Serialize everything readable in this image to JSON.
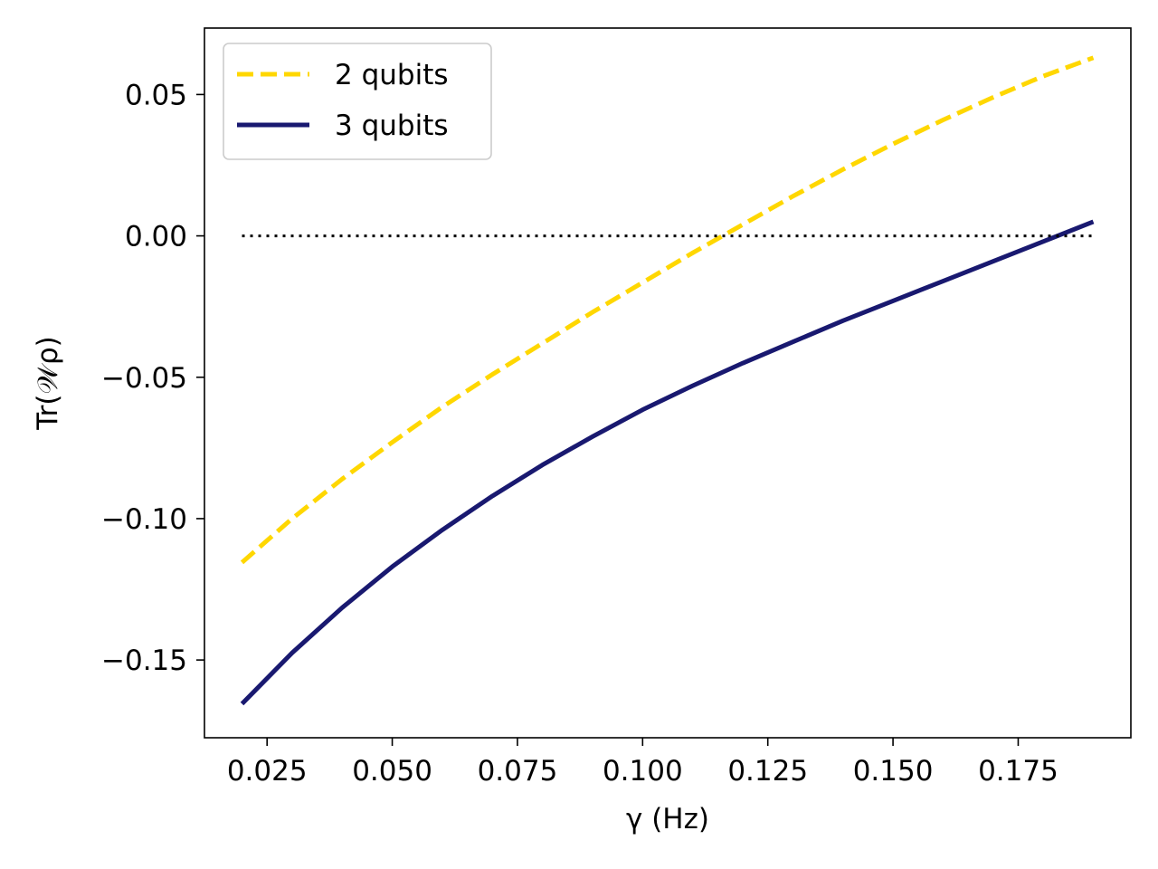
{
  "chart_data": {
    "type": "line",
    "xlabel": "γ (Hz)",
    "ylabel": "Tr(𝒲ρ)",
    "xlim": [
      0.0125,
      0.1975
    ],
    "ylim": [
      -0.1775,
      0.0735
    ],
    "x_ticks": [
      0.025,
      0.05,
      0.075,
      0.1,
      0.125,
      0.15,
      0.175
    ],
    "x_tick_labels": [
      "0.025",
      "0.050",
      "0.075",
      "0.100",
      "0.125",
      "0.150",
      "0.175"
    ],
    "y_ticks": [
      -0.15,
      -0.1,
      -0.05,
      0.0,
      0.05
    ],
    "y_tick_labels": [
      "−0.15",
      "−0.10",
      "−0.05",
      "0.00",
      "0.05"
    ],
    "grid": false,
    "legend_position": "top-left",
    "x": [
      0.02,
      0.03,
      0.04,
      0.05,
      0.06,
      0.07,
      0.08,
      0.09,
      0.1,
      0.11,
      0.12,
      0.13,
      0.14,
      0.15,
      0.16,
      0.17,
      0.18,
      0.19
    ],
    "series": [
      {
        "name": "2 qubits",
        "style": "dashed",
        "color": "#FFD700",
        "values": [
          -0.1155,
          -0.1,
          -0.086,
          -0.073,
          -0.0605,
          -0.049,
          -0.038,
          -0.027,
          -0.0165,
          -0.006,
          0.004,
          0.014,
          0.0235,
          0.0325,
          0.041,
          0.049,
          0.0565,
          0.063
        ]
      },
      {
        "name": "3 qubits",
        "style": "solid",
        "color": "#191970",
        "values": [
          -0.1655,
          -0.1475,
          -0.1315,
          -0.117,
          -0.104,
          -0.092,
          -0.081,
          -0.071,
          -0.0615,
          -0.053,
          -0.045,
          -0.0375,
          -0.03,
          -0.023,
          -0.016,
          -0.009,
          -0.002,
          0.005
        ]
      },
      {
        "name": "",
        "style": "dotted",
        "color": "#000000",
        "values": [
          0,
          0,
          0,
          0,
          0,
          0,
          0,
          0,
          0,
          0,
          0,
          0,
          0,
          0,
          0,
          0,
          0,
          0
        ]
      }
    ]
  }
}
